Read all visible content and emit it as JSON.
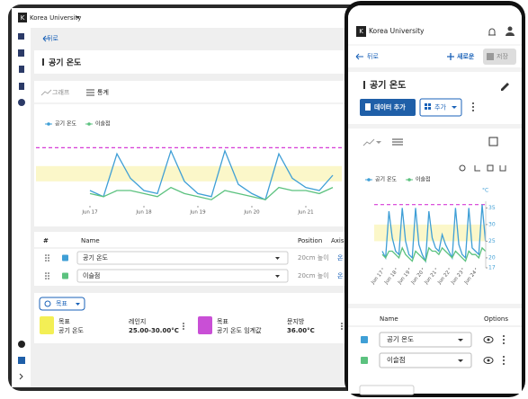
{
  "tablet": {
    "logo": "K",
    "brand": "Korea University",
    "back": "뒤로",
    "title": "공기 온도",
    "toolbar": [
      "그래프",
      "통계"
    ],
    "table": {
      "headers": [
        "#",
        "Name",
        "Position",
        "Axis"
      ],
      "rows": [
        {
          "name": "공기 온도",
          "position": "20cm 높이",
          "axis": "온"
        },
        {
          "name": "이슬점",
          "position": "20cm 높이",
          "axis": "온"
        }
      ]
    },
    "goal_button": "목표",
    "goals": [
      {
        "type": "목표",
        "name": "공기 온도",
        "range_label": "레인지",
        "range": "25.00-30.00°C"
      },
      {
        "type": "목표",
        "name": "공기 온도 임계값",
        "range_label": "문지방",
        "range": "36.00°C"
      }
    ]
  },
  "phone": {
    "logo": "K",
    "brand": "Korea University",
    "back": "뒤로",
    "new": "새로운",
    "save": "저장",
    "title": "공기 온도",
    "add_data": "데이터 추가",
    "add": "추가",
    "table": {
      "headers": [
        "Name",
        "Options"
      ],
      "rows": [
        "공기 온도",
        "이슬점"
      ]
    }
  },
  "chart_data": {
    "type": "line",
    "ylabel": "°C",
    "ylim": [
      17,
      37
    ],
    "yticks": [
      17,
      20,
      25,
      30,
      35
    ],
    "xticks": [
      {
        "value": 0,
        "label": "Jun 17"
      },
      {
        "value": 4,
        "label": "Jun 18"
      },
      {
        "value": 8,
        "label": "Jun 19"
      },
      {
        "value": 12,
        "label": "Jun 20"
      },
      {
        "value": 16,
        "label": "Jun 21"
      },
      {
        "value": 20,
        "label": "Jun 22"
      },
      {
        "value": 24,
        "label": "Jun 23"
      },
      {
        "value": 28,
        "label": "Jun 24"
      }
    ],
    "target_range": [
      25,
      30
    ],
    "threshold": 36,
    "series": [
      {
        "name": "공기 온도",
        "color": "#3f9fd6",
        "values": [
          22,
          20,
          34,
          26,
          22,
          21,
          35,
          25,
          21,
          20,
          35,
          24,
          21,
          19,
          34,
          26,
          23,
          22,
          27,
          24,
          22,
          20,
          35,
          24,
          21,
          20,
          35,
          23,
          22,
          21,
          36,
          25
        ]
      },
      {
        "name": "이슬점",
        "color": "#5cc27f",
        "values": [
          21,
          20,
          22,
          22,
          21,
          20,
          23,
          21,
          20,
          19,
          22,
          21,
          20,
          19,
          23,
          22,
          22,
          21,
          23,
          22,
          21,
          20,
          22,
          21,
          20,
          19,
          22,
          21,
          21,
          20,
          23,
          22
        ]
      }
    ]
  }
}
